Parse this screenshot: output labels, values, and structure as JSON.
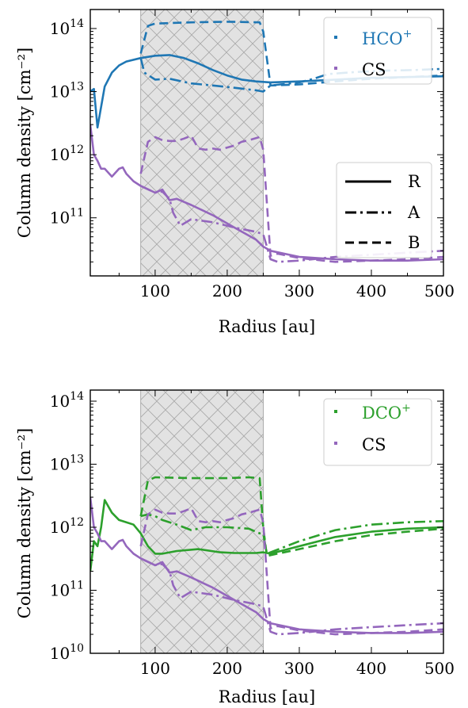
{
  "chart_data": [
    {
      "type": "line",
      "xlabel": "Radius [au]",
      "ylabel": "Column density [cm⁻²]",
      "xlim": [
        10,
        500
      ],
      "ylim": [
        12000000000.0,
        200000000000000.0
      ],
      "yscale": "log",
      "xticks": [
        100,
        200,
        300,
        400,
        500
      ],
      "yticks": [
        {
          "exp": 11,
          "label": "10",
          "sup": "11"
        },
        {
          "exp": 12,
          "label": "10",
          "sup": "12"
        },
        {
          "exp": 13,
          "label": "10",
          "sup": "13"
        },
        {
          "exp": 14,
          "label": "10",
          "sup": "14"
        }
      ],
      "shaded_region": {
        "x": [
          80,
          250
        ],
        "pattern": "crosshatch",
        "color": "#e0e0e0"
      },
      "legend_species": {
        "placement": "top-right",
        "entries": [
          {
            "base": "HCO",
            "sup": "+",
            "color": "#1f77b4"
          },
          {
            "base": "CS",
            "sup": "",
            "color": "#9467bd"
          }
        ]
      },
      "legend_styles": {
        "placement": "center-right",
        "entries": [
          {
            "label": "R",
            "dash": "solid"
          },
          {
            "label": "A",
            "dash": "dashdot"
          },
          {
            "label": "B",
            "dash": "dashed"
          }
        ]
      },
      "series": [
        {
          "species": "HCO+",
          "model": "R",
          "color": "#1f77b4",
          "dash": "solid",
          "x": [
            10,
            15,
            20,
            30,
            40,
            50,
            60,
            80,
            100,
            120,
            140,
            160,
            180,
            200,
            220,
            240,
            260,
            300,
            350,
            400,
            450,
            500
          ],
          "y": [
            10000000000000.0,
            11000000000000.0,
            2700000000000.0,
            12000000000000.0,
            20000000000000.0,
            26000000000000.0,
            30000000000000.0,
            34000000000000.0,
            37000000000000.0,
            38000000000000.0,
            34000000000000.0,
            28000000000000.0,
            22000000000000.0,
            18000000000000.0,
            15500000000000.0,
            14500000000000.0,
            14000000000000.0,
            14500000000000.0,
            15500000000000.0,
            16500000000000.0,
            17000000000000.0,
            17500000000000.0
          ]
        },
        {
          "species": "HCO+",
          "model": "A",
          "color": "#1f77b4",
          "dash": "dashdot",
          "x": [
            80,
            85,
            100,
            120,
            150,
            180,
            210,
            240,
            250,
            260,
            300,
            320,
            340,
            380,
            420,
            460,
            500
          ],
          "y": [
            34000000000000.0,
            20000000000000.0,
            15500000000000.0,
            16000000000000.0,
            13500000000000.0,
            12500000000000.0,
            11500000000000.0,
            10500000000000.0,
            10000000000000.0,
            12500000000000.0,
            14000000000000.0,
            16000000000000.0,
            19000000000000.0,
            20500000000000.0,
            21500000000000.0,
            22000000000000.0,
            23000000000000.0
          ]
        },
        {
          "species": "HCO+",
          "model": "B",
          "color": "#1f77b4",
          "dash": "dashed",
          "x": [
            80,
            90,
            100,
            150,
            200,
            245,
            250,
            260,
            300,
            350,
            400,
            450,
            500
          ],
          "y": [
            40000000000000.0,
            110000000000000.0,
            120000000000000.0,
            125000000000000.0,
            128000000000000.0,
            125000000000000.0,
            90000000000000.0,
            12500000000000.0,
            13000000000000.0,
            14500000000000.0,
            16000000000000.0,
            17000000000000.0,
            18000000000000.0
          ]
        },
        {
          "species": "CS",
          "model": "R",
          "color": "#9467bd",
          "dash": "solid",
          "x": [
            10,
            15,
            20,
            25,
            30,
            40,
            50,
            55,
            60,
            70,
            80,
            100,
            110,
            120,
            130,
            150,
            180,
            210,
            240,
            250,
            260,
            300,
            350,
            400,
            450,
            500
          ],
          "y": [
            3000000000000.0,
            1000000000000.0,
            800000000000.0,
            600000000000.0,
            600000000000.0,
            450000000000.0,
            600000000000.0,
            630000000000.0,
            500000000000.0,
            380000000000.0,
            320000000000.0,
            250000000000.0,
            280000000000.0,
            190000000000.0,
            200000000000.0,
            160000000000.0,
            110000000000.0,
            70000000000.0,
            45000000000.0,
            35000000000.0,
            30000000000.0,
            24000000000.0,
            22000000000.0,
            21000000000.0,
            21000000000.0,
            22000000000.0
          ]
        },
        {
          "species": "CS",
          "model": "A",
          "color": "#9467bd",
          "dash": "dashdot",
          "x": [
            80,
            100,
            110,
            120,
            125,
            135,
            150,
            180,
            210,
            240,
            250,
            255,
            260,
            270,
            300,
            350,
            400,
            450,
            500
          ],
          "y": [
            320000000000.0,
            250000000000.0,
            260000000000.0,
            200000000000.0,
            120000000000.0,
            75000000000.0,
            95000000000.0,
            85000000000.0,
            70000000000.0,
            60000000000.0,
            55000000000.0,
            35000000000.0,
            22000000000.0,
            20000000000.0,
            21000000000.0,
            24000000000.0,
            26000000000.0,
            28000000000.0,
            30000000000.0
          ]
        },
        {
          "species": "CS",
          "model": "B",
          "color": "#9467bd",
          "dash": "dashed",
          "x": [
            80,
            90,
            100,
            110,
            120,
            130,
            140,
            150,
            160,
            170,
            180,
            190,
            200,
            210,
            220,
            230,
            245,
            250,
            260,
            270,
            300,
            350,
            400,
            450,
            500
          ],
          "y": [
            500000000000.0,
            1600000000000.0,
            1900000000000.0,
            1700000000000.0,
            1650000000000.0,
            1650000000000.0,
            1800000000000.0,
            2000000000000.0,
            1250000000000.0,
            1200000000000.0,
            1250000000000.0,
            1200000000000.0,
            1300000000000.0,
            1400000000000.0,
            1600000000000.0,
            1700000000000.0,
            1900000000000.0,
            1200000000000.0,
            25000000000.0,
            27000000000.0,
            23000000000.0,
            20000000000.0,
            21000000000.0,
            22000000000.0,
            24000000000.0
          ]
        }
      ]
    },
    {
      "type": "line",
      "xlabel": "Radius [au]",
      "ylabel": "Column density [cm⁻²]",
      "xlim": [
        10,
        500
      ],
      "ylim": [
        10000000000.0,
        150000000000000.0
      ],
      "yscale": "log",
      "xticks": [
        100,
        200,
        300,
        400,
        500
      ],
      "yticks": [
        {
          "exp": 10,
          "label": "10",
          "sup": "10"
        },
        {
          "exp": 11,
          "label": "10",
          "sup": "11"
        },
        {
          "exp": 12,
          "label": "10",
          "sup": "12"
        },
        {
          "exp": 13,
          "label": "10",
          "sup": "13"
        },
        {
          "exp": 14,
          "label": "10",
          "sup": "14"
        }
      ],
      "shaded_region": {
        "x": [
          80,
          250
        ],
        "pattern": "crosshatch",
        "color": "#e0e0e0"
      },
      "legend_species": {
        "placement": "top-right",
        "entries": [
          {
            "base": "DCO",
            "sup": "+",
            "color": "#2ca02c"
          },
          {
            "base": "CS",
            "sup": "",
            "color": "#9467bd"
          }
        ]
      },
      "series": [
        {
          "species": "DCO+",
          "model": "R",
          "color": "#2ca02c",
          "dash": "solid",
          "x": [
            10,
            15,
            20,
            25,
            30,
            40,
            50,
            60,
            70,
            80,
            90,
            100,
            110,
            130,
            160,
            190,
            210,
            240,
            250,
            260,
            300,
            350,
            400,
            450,
            500
          ],
          "y": [
            200000000000.0,
            600000000000.0,
            500000000000.0,
            1000000000000.0,
            2700000000000.0,
            1700000000000.0,
            1300000000000.0,
            1200000000000.0,
            1100000000000.0,
            800000000000.0,
            500000000000.0,
            380000000000.0,
            380000000000.0,
            420000000000.0,
            450000000000.0,
            400000000000.0,
            390000000000.0,
            390000000000.0,
            400000000000.0,
            380000000000.0,
            500000000000.0,
            700000000000.0,
            850000000000.0,
            950000000000.0,
            1000000000000.0
          ]
        },
        {
          "species": "DCO+",
          "model": "A",
          "color": "#2ca02c",
          "dash": "dashdot",
          "x": [
            80,
            90,
            100,
            110,
            130,
            150,
            170,
            200,
            230,
            245,
            250,
            255,
            300,
            350,
            400,
            450,
            500
          ],
          "y": [
            1500000000000.0,
            1600000000000.0,
            1500000000000.0,
            1300000000000.0,
            1100000000000.0,
            900000000000.0,
            1000000000000.0,
            1000000000000.0,
            950000000000.0,
            800000000000.0,
            800000000000.0,
            380000000000.0,
            600000000000.0,
            900000000000.0,
            1100000000000.0,
            1200000000000.0,
            1250000000000.0
          ]
        },
        {
          "species": "DCO+",
          "model": "B",
          "color": "#2ca02c",
          "dash": "dashed",
          "x": [
            80,
            90,
            100,
            150,
            200,
            230,
            245,
            250,
            255,
            300,
            350,
            400,
            450,
            500
          ],
          "y": [
            1500000000000.0,
            5500000000000.0,
            6200000000000.0,
            6000000000000.0,
            6000000000000.0,
            6200000000000.0,
            6000000000000.0,
            1000000000000.0,
            350000000000.0,
            450000000000.0,
            600000000000.0,
            750000000000.0,
            850000000000.0,
            950000000000.0
          ]
        },
        {
          "species": "CS",
          "model": "R",
          "color": "#9467bd",
          "dash": "solid",
          "x": [
            10,
            15,
            20,
            25,
            30,
            40,
            50,
            55,
            60,
            70,
            80,
            100,
            110,
            120,
            130,
            150,
            180,
            210,
            240,
            250,
            260,
            300,
            350,
            400,
            450,
            500
          ],
          "y": [
            3000000000000.0,
            1000000000000.0,
            800000000000.0,
            600000000000.0,
            600000000000.0,
            450000000000.0,
            600000000000.0,
            630000000000.0,
            500000000000.0,
            380000000000.0,
            320000000000.0,
            250000000000.0,
            280000000000.0,
            190000000000.0,
            200000000000.0,
            160000000000.0,
            110000000000.0,
            70000000000.0,
            45000000000.0,
            35000000000.0,
            30000000000.0,
            24000000000.0,
            22000000000.0,
            21000000000.0,
            21000000000.0,
            22000000000.0
          ]
        },
        {
          "species": "CS",
          "model": "A",
          "color": "#9467bd",
          "dash": "dashdot",
          "x": [
            80,
            100,
            110,
            120,
            125,
            135,
            150,
            180,
            210,
            240,
            250,
            255,
            260,
            270,
            300,
            350,
            400,
            450,
            500
          ],
          "y": [
            320000000000.0,
            250000000000.0,
            260000000000.0,
            200000000000.0,
            120000000000.0,
            75000000000.0,
            95000000000.0,
            85000000000.0,
            70000000000.0,
            60000000000.0,
            55000000000.0,
            35000000000.0,
            22000000000.0,
            20000000000.0,
            21000000000.0,
            24000000000.0,
            26000000000.0,
            28000000000.0,
            30000000000.0
          ]
        },
        {
          "species": "CS",
          "model": "B",
          "color": "#9467bd",
          "dash": "dashed",
          "x": [
            80,
            90,
            100,
            110,
            120,
            130,
            140,
            150,
            160,
            170,
            180,
            190,
            200,
            210,
            220,
            230,
            245,
            250,
            260,
            270,
            300,
            350,
            400,
            450,
            500
          ],
          "y": [
            500000000000.0,
            1600000000000.0,
            1900000000000.0,
            1700000000000.0,
            1650000000000.0,
            1650000000000.0,
            1800000000000.0,
            2000000000000.0,
            1250000000000.0,
            1200000000000.0,
            1250000000000.0,
            1200000000000.0,
            1300000000000.0,
            1400000000000.0,
            1600000000000.0,
            1700000000000.0,
            1900000000000.0,
            1200000000000.0,
            25000000000.0,
            27000000000.0,
            23000000000.0,
            20000000000.0,
            21000000000.0,
            22000000000.0,
            24000000000.0
          ]
        }
      ]
    }
  ]
}
